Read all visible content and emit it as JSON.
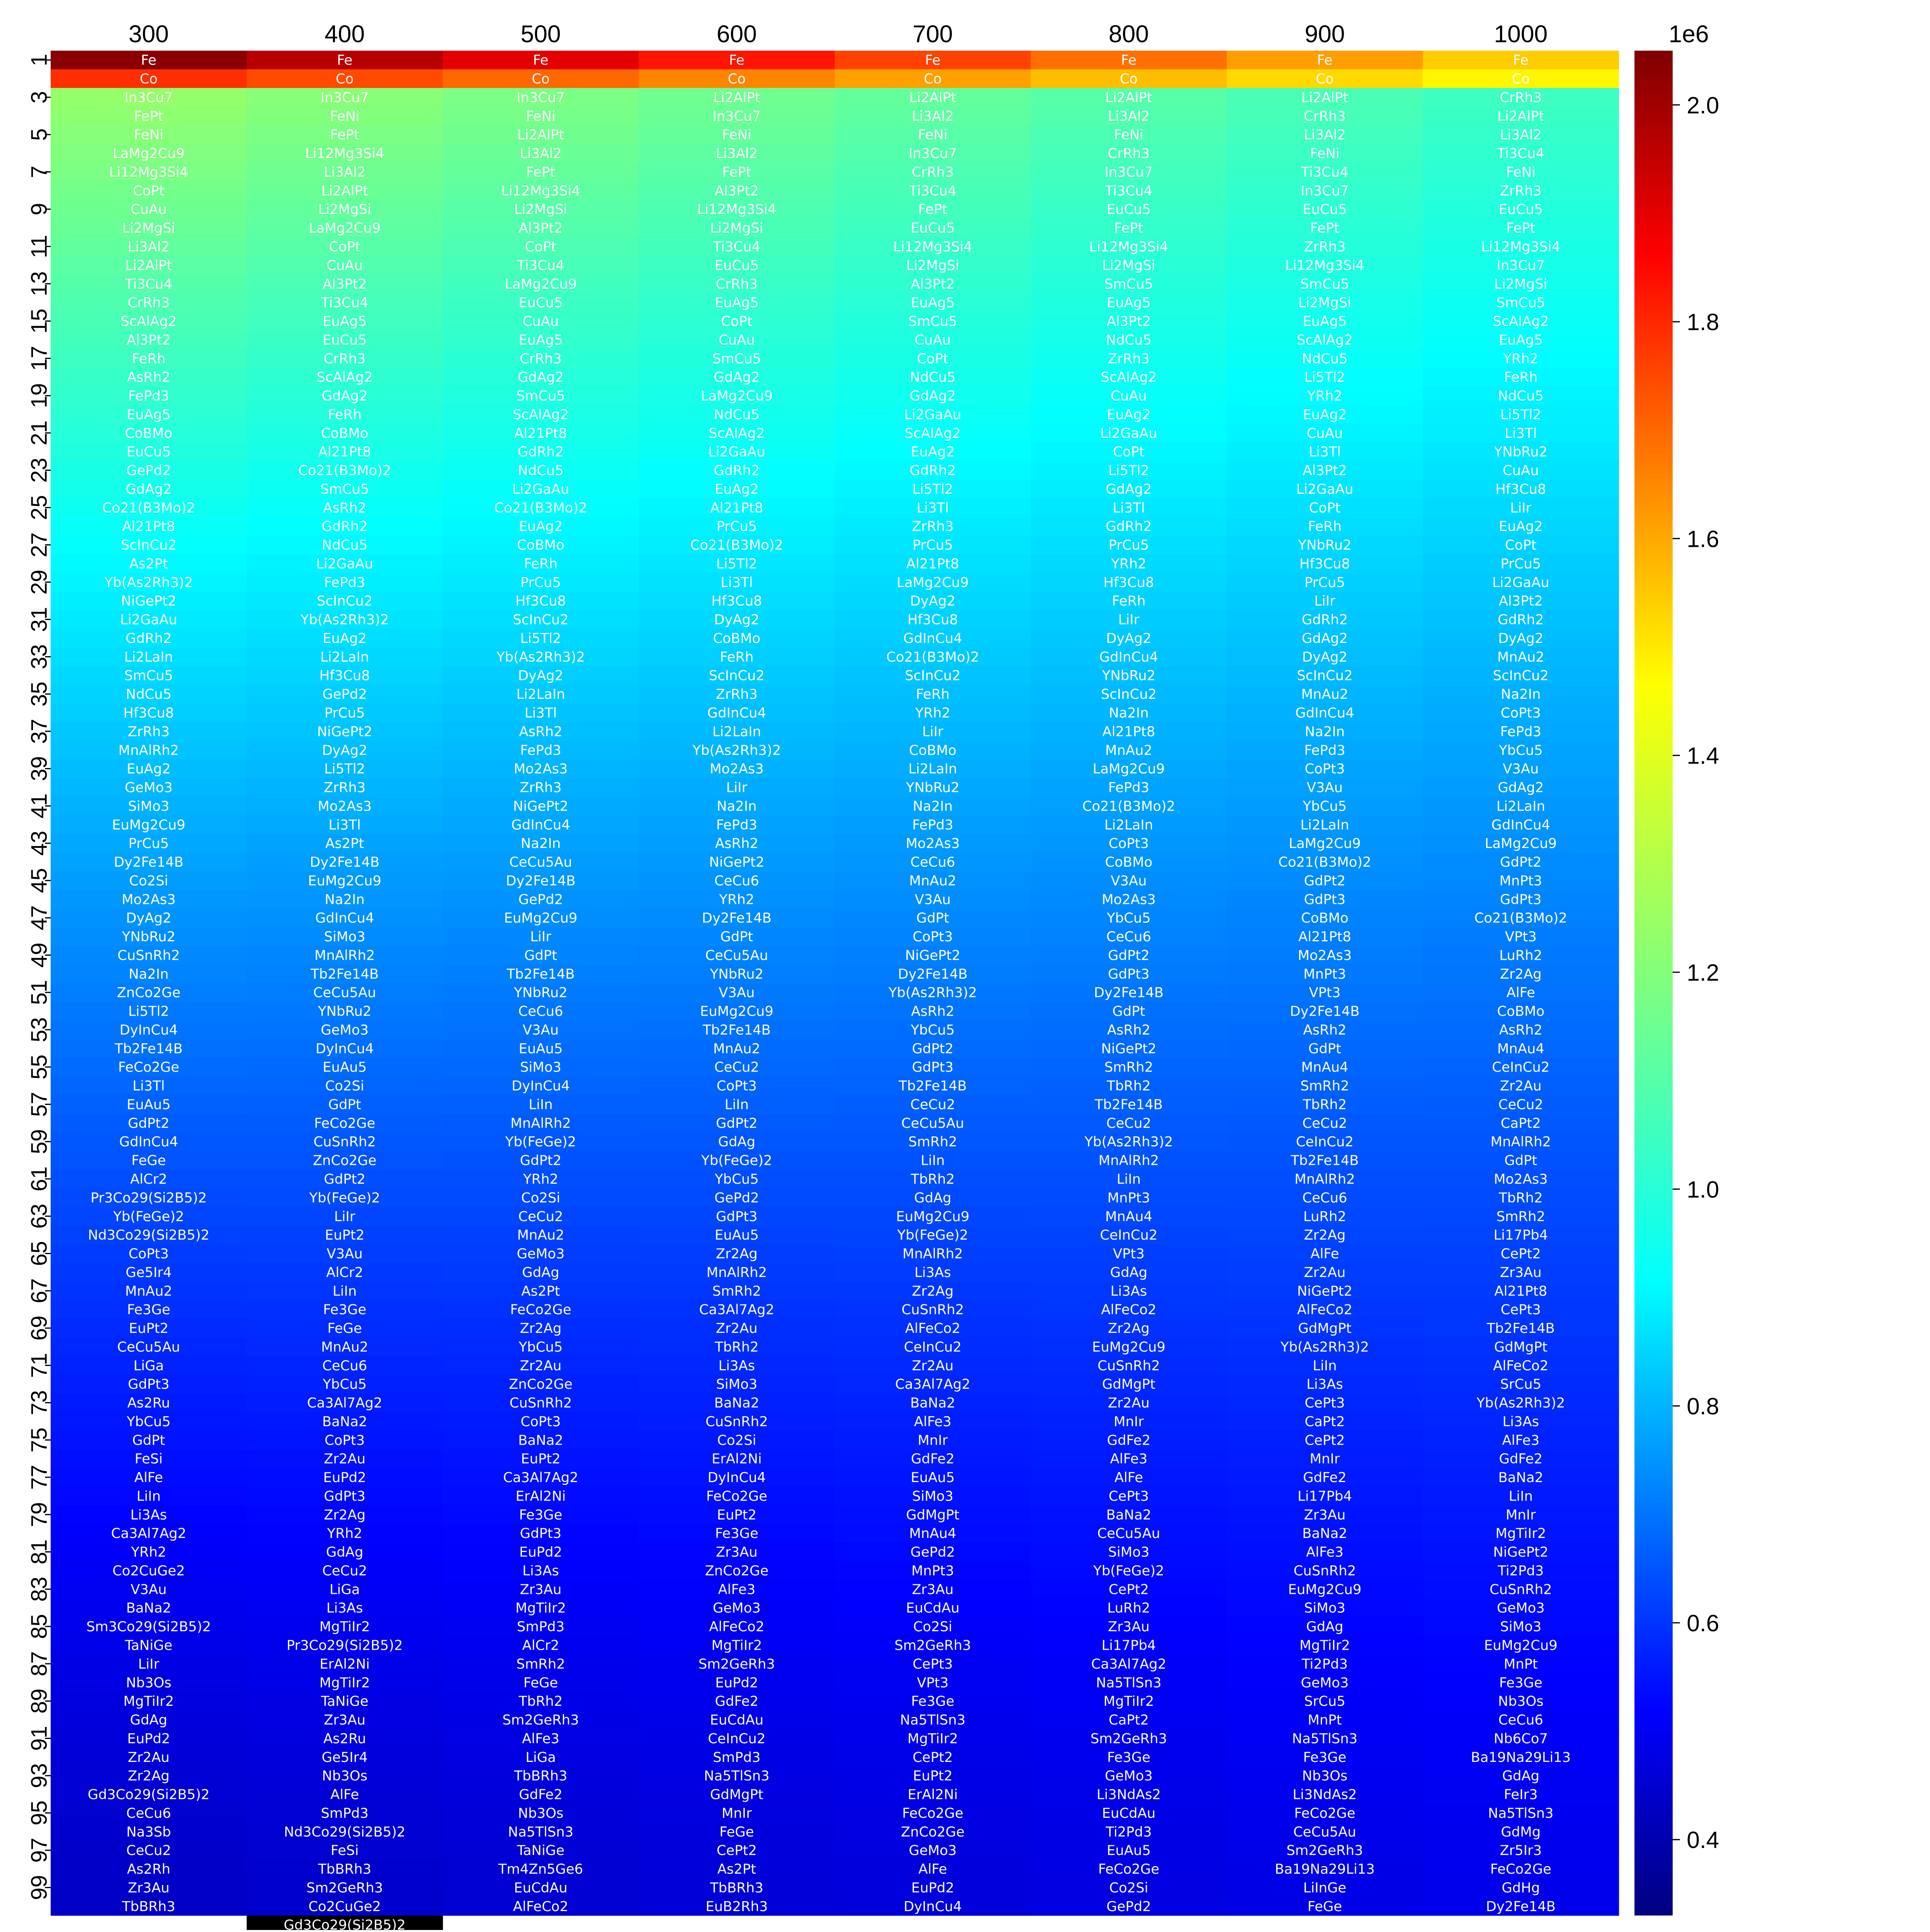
{
  "chart_data": {
    "type": "heatmap",
    "title": "",
    "xlabel": "",
    "ylabel": "",
    "columns": [
      "300",
      "400",
      "500",
      "600",
      "700",
      "800",
      "900",
      "1000"
    ],
    "row_tick_labels": [
      "1",
      "3",
      "5",
      "7",
      "9",
      "11",
      "13",
      "15",
      "17",
      "19",
      "21",
      "23",
      "25",
      "27",
      "29",
      "31",
      "33",
      "35",
      "37",
      "39",
      "41",
      "43",
      "45",
      "47",
      "49",
      "51",
      "53",
      "55",
      "57",
      "59",
      "61",
      "63",
      "65",
      "67",
      "69",
      "71",
      "73",
      "75",
      "77",
      "79",
      "81",
      "83",
      "85",
      "87",
      "89",
      "91",
      "93",
      "95",
      "97",
      "99"
    ],
    "colorbar": {
      "colormap": "jet",
      "ticks": [
        "0.4",
        "0.6",
        "0.8",
        "1.0",
        "1.2",
        "1.4",
        "1.6",
        "1.8",
        "2.0"
      ],
      "exponent_label": "1e6",
      "range": [
        0.33,
        2.05
      ]
    },
    "cells": [
      [
        "Fe",
        "Co",
        "In3Cu7",
        "FePt",
        "FeNi",
        "LaMg2Cu9",
        "Li12Mg3Si4",
        "CoPt",
        "CuAu",
        "Li2MgSi",
        "Li3Al2",
        "Li2AlPt",
        "Ti3Cu4",
        "CrRh3",
        "ScAlAg2",
        "Al3Pt2",
        "FeRh",
        "AsRh2",
        "FePd3",
        "EuAg5",
        "CoBMo",
        "EuCu5",
        "GePd2",
        "GdAg2",
        "Co21(B3Mo)2",
        "Al21Pt8",
        "ScInCu2",
        "As2Pt",
        "Yb(As2Rh3)2",
        "NiGePt2",
        "Li2GaAu",
        "GdRh2",
        "Li2LaIn",
        "SmCu5",
        "NdCu5",
        "Hf3Cu8",
        "ZrRh3",
        "MnAlRh2",
        "EuAg2",
        "GeMo3",
        "SiMo3",
        "EuMg2Cu9",
        "PrCu5",
        "Dy2Fe14B",
        "Co2Si",
        "Mo2As3",
        "DyAg2",
        "YNbRu2",
        "CuSnRh2",
        "Na2In",
        "ZnCo2Ge",
        "Li5Tl2",
        "DyInCu4",
        "Tb2Fe14B",
        "FeCo2Ge",
        "Li3Tl",
        "EuAu5",
        "GdPt2",
        "GdInCu4",
        "FeGe",
        "AlCr2",
        "Pr3Co29(Si2B5)2",
        "Yb(FeGe)2",
        "Nd3Co29(Si2B5)2",
        "CoPt3",
        "Ge5Ir4",
        "MnAu2",
        "Fe3Ge",
        "EuPt2",
        "CeCu5Au",
        "LiGa",
        "GdPt3",
        "As2Ru",
        "YbCu5",
        "GdPt",
        "FeSi",
        "AlFe",
        "LiIn",
        "Li3As",
        "Ca3Al7Ag2",
        "YRh2",
        "Co2CuGe2",
        "V3Au",
        "BaNa2",
        "Sm3Co29(Si2B5)2",
        "TaNiGe",
        "LiIr",
        "Nb3Os",
        "MgTiIr2",
        "GdAg",
        "EuPd2",
        "Zr2Au",
        "Zr2Ag",
        "Gd3Co29(Si2B5)2",
        "CeCu6",
        "Na3Sb",
        "CeCu2",
        "As2Rh",
        "Zr3Au",
        "TbBRh3"
      ],
      [
        "Fe",
        "Co",
        "In3Cu7",
        "FeNi",
        "FePt",
        "Li12Mg3Si4",
        "Li3Al2",
        "Li2AlPt",
        "Li2MgSi",
        "LaMg2Cu9",
        "CoPt",
        "CuAu",
        "Al3Pt2",
        "Ti3Cu4",
        "EuAg5",
        "EuCu5",
        "CrRh3",
        "ScAlAg2",
        "GdAg2",
        "FeRh",
        "CoBMo",
        "Al21Pt8",
        "Co21(B3Mo)2",
        "SmCu5",
        "AsRh2",
        "GdRh2",
        "NdCu5",
        "Li2GaAu",
        "FePd3",
        "ScInCu2",
        "Yb(As2Rh3)2",
        "EuAg2",
        "Li2LaIn",
        "Hf3Cu8",
        "GePd2",
        "PrCu5",
        "NiGePt2",
        "DyAg2",
        "Li5Tl2",
        "ZrRh3",
        "Mo2As3",
        "Li3Tl",
        "As2Pt",
        "Dy2Fe14B",
        "EuMg2Cu9",
        "Na2In",
        "GdInCu4",
        "SiMo3",
        "MnAlRh2",
        "Tb2Fe14B",
        "CeCu5Au",
        "YNbRu2",
        "GeMo3",
        "DyInCu4",
        "EuAu5",
        "Co2Si",
        "GdPt",
        "FeCo2Ge",
        "CuSnRh2",
        "ZnCo2Ge",
        "GdPt2",
        "Yb(FeGe)2",
        "LiIr",
        "EuPt2",
        "V3Au",
        "AlCr2",
        "LiIn",
        "Fe3Ge",
        "FeGe",
        "MnAu2",
        "CeCu6",
        "YbCu5",
        "Ca3Al7Ag2",
        "BaNa2",
        "CoPt3",
        "Zr2Au",
        "EuPd2",
        "GdPt3",
        "Zr2Ag",
        "YRh2",
        "GdAg",
        "CeCu2",
        "LiGa",
        "Li3As",
        "MgTiIr2",
        "Pr3Co29(Si2B5)2",
        "ErAl2Ni",
        "MgTiIr2",
        "TaNiGe",
        "Zr3Au",
        "As2Ru",
        "Ge5Ir4",
        "Nb3Os",
        "AlFe",
        "SmPd3",
        "Nd3Co29(Si2B5)2",
        "FeSi",
        "TbBRh3",
        "Sm2GeRh3",
        "Co2CuGe2",
        "Gd3Co29(Si2B5)2"
      ],
      [
        "Fe",
        "Co",
        "In3Cu7",
        "FeNi",
        "Li2AlPt",
        "Li3Al2",
        "FePt",
        "Li12Mg3Si4",
        "Li2MgSi",
        "Al3Pt2",
        "CoPt",
        "Ti3Cu4",
        "LaMg2Cu9",
        "EuCu5",
        "CuAu",
        "EuAg5",
        "CrRh3",
        "GdAg2",
        "SmCu5",
        "ScAlAg2",
        "Al21Pt8",
        "GdRh2",
        "NdCu5",
        "Li2GaAu",
        "Co21(B3Mo)2",
        "EuAg2",
        "CoBMo",
        "FeRh",
        "PrCu5",
        "Hf3Cu8",
        "ScInCu2",
        "Li5Tl2",
        "Yb(As2Rh3)2",
        "DyAg2",
        "Li2LaIn",
        "Li3Tl",
        "AsRh2",
        "FePd3",
        "Mo2As3",
        "ZrRh3",
        "NiGePt2",
        "GdInCu4",
        "Na2In",
        "CeCu5Au",
        "Dy2Fe14B",
        "GePd2",
        "EuMg2Cu9",
        "LiIr",
        "GdPt",
        "Tb2Fe14B",
        "YNbRu2",
        "CeCu6",
        "V3Au",
        "EuAu5",
        "SiMo3",
        "DyInCu4",
        "LiIn",
        "MnAlRh2",
        "Yb(FeGe)2",
        "GdPt2",
        "YRh2",
        "Co2Si",
        "CeCu2",
        "MnAu2",
        "GeMo3",
        "GdAg",
        "As2Pt",
        "FeCo2Ge",
        "Zr2Ag",
        "YbCu5",
        "Zr2Au",
        "ZnCo2Ge",
        "CuSnRh2",
        "CoPt3",
        "BaNa2",
        "EuPt2",
        "Ca3Al7Ag2",
        "ErAl2Ni",
        "Fe3Ge",
        "GdPt3",
        "EuPd2",
        "Li3As",
        "Zr3Au",
        "MgTiIr2",
        "SmPd3",
        "AlCr2",
        "SmRh2",
        "FeGe",
        "TbRh2",
        "Sm2GeRh3",
        "AlFe3",
        "LiGa",
        "TbBRh3",
        "GdFe2",
        "Nb3Os",
        "Na5TlSn3",
        "TaNiGe",
        "Tm4Zn5Ge6",
        "EuCdAu",
        "AlFeCo2"
      ],
      [
        "Fe",
        "Co",
        "Li2AlPt",
        "In3Cu7",
        "FeNi",
        "Li3Al2",
        "FePt",
        "Al3Pt2",
        "Li12Mg3Si4",
        "Li2MgSi",
        "Ti3Cu4",
        "EuCu5",
        "CrRh3",
        "EuAg5",
        "CoPt",
        "CuAu",
        "SmCu5",
        "GdAg2",
        "LaMg2Cu9",
        "NdCu5",
        "ScAlAg2",
        "Li2GaAu",
        "GdRh2",
        "EuAg2",
        "Al21Pt8",
        "PrCu5",
        "Co21(B3Mo)2",
        "Li5Tl2",
        "Li3Tl",
        "Hf3Cu8",
        "DyAg2",
        "CoBMo",
        "FeRh",
        "ScInCu2",
        "ZrRh3",
        "GdInCu4",
        "Li2LaIn",
        "Yb(As2Rh3)2",
        "Mo2As3",
        "LiIr",
        "Na2In",
        "FePd3",
        "AsRh2",
        "NiGePt2",
        "CeCu6",
        "YRh2",
        "Dy2Fe14B",
        "GdPt",
        "CeCu5Au",
        "YNbRu2",
        "V3Au",
        "EuMg2Cu9",
        "Tb2Fe14B",
        "MnAu2",
        "CeCu2",
        "CoPt3",
        "LiIn",
        "GdPt2",
        "GdAg",
        "Yb(FeGe)2",
        "YbCu5",
        "GePd2",
        "GdPt3",
        "EuAu5",
        "Zr2Ag",
        "MnAlRh2",
        "SmRh2",
        "Ca3Al7Ag2",
        "Zr2Au",
        "TbRh2",
        "Li3As",
        "SiMo3",
        "BaNa2",
        "CuSnRh2",
        "Co2Si",
        "ErAl2Ni",
        "DyInCu4",
        "FeCo2Ge",
        "EuPt2",
        "Fe3Ge",
        "Zr3Au",
        "ZnCo2Ge",
        "AlFe3",
        "GeMo3",
        "AlFeCo2",
        "MgTiIr2",
        "Sm2GeRh3",
        "EuPd2",
        "GdFe2",
        "EuCdAu",
        "CeInCu2",
        "SmPd3",
        "Na5TlSn3",
        "GdMgPt",
        "MnIr",
        "FeGe",
        "CePt2",
        "As2Pt",
        "TbBRh3",
        "EuB2Rh3"
      ],
      [
        "Fe",
        "Co",
        "Li2AlPt",
        "Li3Al2",
        "FeNi",
        "In3Cu7",
        "CrRh3",
        "Ti3Cu4",
        "FePt",
        "EuCu5",
        "Li12Mg3Si4",
        "Li2MgSi",
        "Al3Pt2",
        "EuAg5",
        "SmCu5",
        "CuAu",
        "CoPt",
        "NdCu5",
        "GdAg2",
        "Li2GaAu",
        "ScAlAg2",
        "EuAg2",
        "GdRh2",
        "Li5Tl2",
        "Li3Tl",
        "ZrRh3",
        "PrCu5",
        "Al21Pt8",
        "LaMg2Cu9",
        "DyAg2",
        "Hf3Cu8",
        "GdInCu4",
        "Co21(B3Mo)2",
        "ScInCu2",
        "FeRh",
        "YRh2",
        "LiIr",
        "CoBMo",
        "Li2LaIn",
        "YNbRu2",
        "Na2In",
        "FePd3",
        "Mo2As3",
        "CeCu6",
        "MnAu2",
        "V3Au",
        "GdPt",
        "CoPt3",
        "NiGePt2",
        "Dy2Fe14B",
        "Yb(As2Rh3)2",
        "AsRh2",
        "YbCu5",
        "GdPt2",
        "GdPt3",
        "Tb2Fe14B",
        "CeCu2",
        "CeCu5Au",
        "SmRh2",
        "LiIn",
        "TbRh2",
        "GdAg",
        "EuMg2Cu9",
        "Yb(FeGe)2",
        "MnAlRh2",
        "Li3As",
        "Zr2Ag",
        "CuSnRh2",
        "AlFeCo2",
        "CeInCu2",
        "Zr2Au",
        "Ca3Al7Ag2",
        "BaNa2",
        "AlFe3",
        "MnIr",
        "GdFe2",
        "EuAu5",
        "SiMo3",
        "GdMgPt",
        "MnAu4",
        "GePd2",
        "MnPt3",
        "Zr3Au",
        "EuCdAu",
        "Co2Si",
        "Sm2GeRh3",
        "CePt3",
        "VPt3",
        "Fe3Ge",
        "Na5TlSn3",
        "MgTiIr2",
        "CePt2",
        "EuPt2",
        "ErAl2Ni",
        "FeCo2Ge",
        "ZnCo2Ge",
        "GeMo3",
        "AlFe",
        "EuPd2",
        "DyInCu4"
      ],
      [
        "Fe",
        "Co",
        "Li2AlPt",
        "Li3Al2",
        "FeNi",
        "CrRh3",
        "In3Cu7",
        "Ti3Cu4",
        "EuCu5",
        "FePt",
        "Li12Mg3Si4",
        "Li2MgSi",
        "SmCu5",
        "EuAg5",
        "Al3Pt2",
        "NdCu5",
        "ZrRh3",
        "ScAlAg2",
        "CuAu",
        "EuAg2",
        "Li2GaAu",
        "CoPt",
        "Li5Tl2",
        "GdAg2",
        "Li3Tl",
        "GdRh2",
        "PrCu5",
        "YRh2",
        "Hf3Cu8",
        "FeRh",
        "LiIr",
        "DyAg2",
        "GdInCu4",
        "YNbRu2",
        "ScInCu2",
        "Na2In",
        "Al21Pt8",
        "MnAu2",
        "LaMg2Cu9",
        "FePd3",
        "Co21(B3Mo)2",
        "Li2LaIn",
        "CoPt3",
        "CoBMo",
        "V3Au",
        "Mo2As3",
        "YbCu5",
        "CeCu6",
        "GdPt2",
        "GdPt3",
        "Dy2Fe14B",
        "GdPt",
        "AsRh2",
        "NiGePt2",
        "SmRh2",
        "TbRh2",
        "Tb2Fe14B",
        "CeCu2",
        "Yb(As2Rh3)2",
        "MnAlRh2",
        "LiIn",
        "MnPt3",
        "MnAu4",
        "CeInCu2",
        "VPt3",
        "GdAg",
        "Li3As",
        "AlFeCo2",
        "Zr2Ag",
        "EuMg2Cu9",
        "CuSnRh2",
        "GdMgPt",
        "Zr2Au",
        "MnIr",
        "GdFe2",
        "AlFe3",
        "AlFe",
        "CePt3",
        "BaNa2",
        "CeCu5Au",
        "SiMo3",
        "Yb(FeGe)2",
        "CePt2",
        "LuRh2",
        "Zr3Au",
        "Li17Pb4",
        "Ca3Al7Ag2",
        "Na5TlSn3",
        "MgTiIr2",
        "CaPt2",
        "Sm2GeRh3",
        "Fe3Ge",
        "GeMo3",
        "Li3NdAs2",
        "EuCdAu",
        "Ti2Pd3",
        "EuAu5",
        "FeCo2Ge",
        "Co2Si",
        "GePd2"
      ],
      [
        "Fe",
        "Co",
        "Li2AlPt",
        "CrRh3",
        "Li3Al2",
        "FeNi",
        "Ti3Cu4",
        "In3Cu7",
        "EuCu5",
        "FePt",
        "ZrRh3",
        "Li12Mg3Si4",
        "SmCu5",
        "Li2MgSi",
        "EuAg5",
        "ScAlAg2",
        "NdCu5",
        "Li5Tl2",
        "YRh2",
        "EuAg2",
        "CuAu",
        "Li3Tl",
        "Al3Pt2",
        "Li2GaAu",
        "CoPt",
        "FeRh",
        "YNbRu2",
        "Hf3Cu8",
        "PrCu5",
        "LiIr",
        "GdRh2",
        "GdAg2",
        "DyAg2",
        "ScInCu2",
        "MnAu2",
        "GdInCu4",
        "Na2In",
        "FePd3",
        "CoPt3",
        "V3Au",
        "YbCu5",
        "Li2LaIn",
        "LaMg2Cu9",
        "Co21(B3Mo)2",
        "GdPt2",
        "GdPt3",
        "CoBMo",
        "Al21Pt8",
        "Mo2As3",
        "MnPt3",
        "VPt3",
        "Dy2Fe14B",
        "AsRh2",
        "GdPt",
        "MnAu4",
        "SmRh2",
        "TbRh2",
        "CeCu2",
        "CeInCu2",
        "Tb2Fe14B",
        "MnAlRh2",
        "CeCu6",
        "LuRh2",
        "Zr2Ag",
        "AlFe",
        "Zr2Au",
        "NiGePt2",
        "AlFeCo2",
        "GdMgPt",
        "Yb(As2Rh3)2",
        "LiIn",
        "Li3As",
        "CePt3",
        "CaPt2",
        "CePt2",
        "MnIr",
        "GdFe2",
        "Li17Pb4",
        "Zr3Au",
        "BaNa2",
        "AlFe3",
        "CuSnRh2",
        "EuMg2Cu9",
        "SiMo3",
        "GdAg",
        "MgTiIr2",
        "Ti2Pd3",
        "GeMo3",
        "SrCu5",
        "MnPt",
        "Na5TlSn3",
        "Fe3Ge",
        "Nb3Os",
        "Li3NdAs2",
        "FeCo2Ge",
        "CeCu5Au",
        "Sm2GeRh3",
        "Ba19Na29Li13",
        "LiInGe",
        "FeGe"
      ],
      [
        "Fe",
        "Co",
        "CrRh3",
        "Li2AlPt",
        "Li3Al2",
        "Ti3Cu4",
        "FeNi",
        "ZrRh3",
        "EuCu5",
        "FePt",
        "Li12Mg3Si4",
        "In3Cu7",
        "Li2MgSi",
        "SmCu5",
        "ScAlAg2",
        "EuAg5",
        "YRh2",
        "FeRh",
        "NdCu5",
        "Li5Tl2",
        "Li3Tl",
        "YNbRu2",
        "CuAu",
        "Hf3Cu8",
        "LiIr",
        "EuAg2",
        "CoPt",
        "PrCu5",
        "Li2GaAu",
        "Al3Pt2",
        "GdRh2",
        "DyAg2",
        "MnAu2",
        "ScInCu2",
        "Na2In",
        "CoPt3",
        "FePd3",
        "YbCu5",
        "V3Au",
        "GdAg2",
        "Li2LaIn",
        "GdInCu4",
        "LaMg2Cu9",
        "GdPt2",
        "MnPt3",
        "GdPt3",
        "Co21(B3Mo)2",
        "VPt3",
        "LuRh2",
        "Zr2Ag",
        "AlFe",
        "CoBMo",
        "AsRh2",
        "MnAu4",
        "CeInCu2",
        "Zr2Au",
        "CeCu2",
        "CaPt2",
        "MnAlRh2",
        "GdPt",
        "Mo2As3",
        "TbRh2",
        "SmRh2",
        "Li17Pb4",
        "CePt2",
        "Zr3Au",
        "Al21Pt8",
        "CePt3",
        "Tb2Fe14B",
        "GdMgPt",
        "AlFeCo2",
        "SrCu5",
        "Yb(As2Rh3)2",
        "Li3As",
        "AlFe3",
        "GdFe2",
        "BaNa2",
        "LiIn",
        "MnIr",
        "MgTiIr2",
        "NiGePt2",
        "Ti2Pd3",
        "CuSnRh2",
        "GeMo3",
        "SiMo3",
        "EuMg2Cu9",
        "MnPt",
        "Fe3Ge",
        "Nb3Os",
        "CeCu6",
        "Nb6Co7",
        "Ba19Na29Li13",
        "GdAg",
        "FeIr3",
        "Na5TlSn3",
        "GdMg",
        "Zr5Ir3",
        "FeCo2Ge",
        "GdHg",
        "Dy2Fe14B"
      ]
    ]
  }
}
